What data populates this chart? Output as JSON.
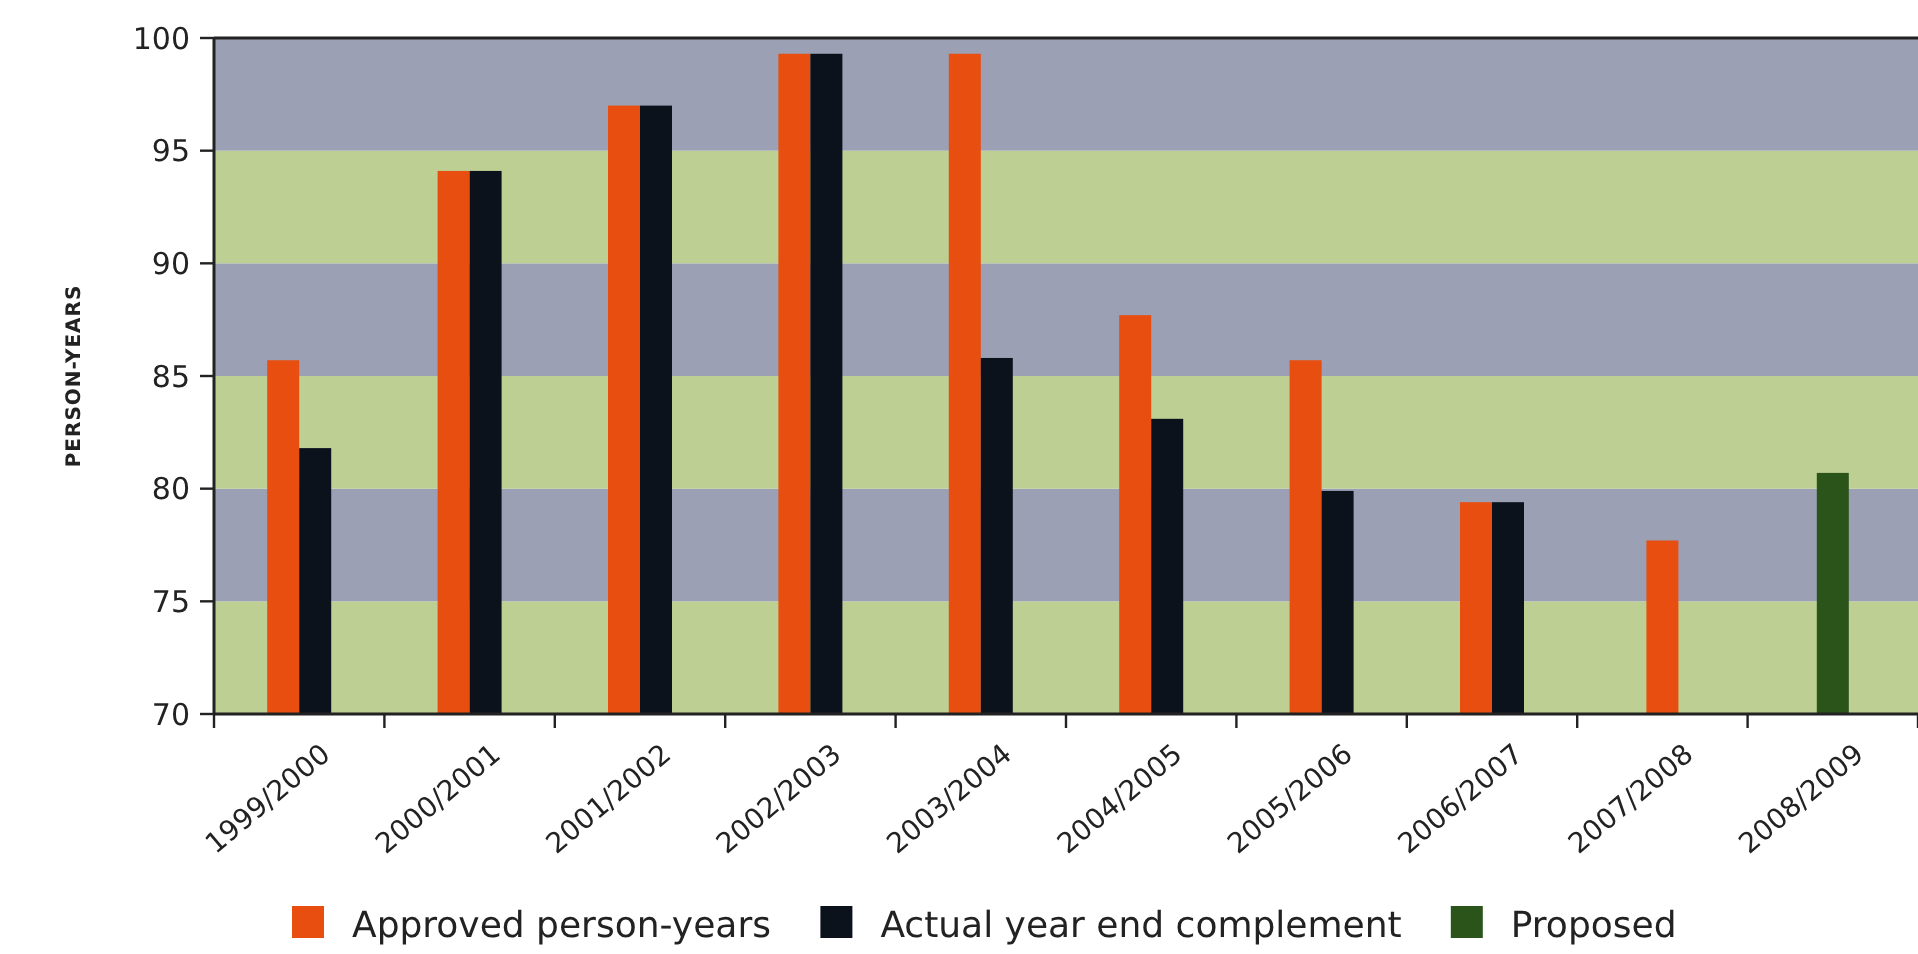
{
  "chart_data": {
    "type": "bar",
    "ylabel": "PERSON-YEARS",
    "categories": [
      "1999/2000",
      "2000/2001",
      "2001/2002",
      "2002/2003",
      "2003/2004",
      "2004/2005",
      "2005/2006",
      "2006/2007",
      "2007/2008",
      "2008/2009"
    ],
    "series": [
      {
        "name": "Approved person-years",
        "color": "#e84e0f",
        "values": [
          85.7,
          94.1,
          97.0,
          99.3,
          99.3,
          87.7,
          85.7,
          79.4,
          77.7,
          null
        ]
      },
      {
        "name": "Actual year end complement",
        "color": "#0c121c",
        "values": [
          81.8,
          94.1,
          97.0,
          99.3,
          85.8,
          83.1,
          79.9,
          79.4,
          null,
          null
        ]
      },
      {
        "name": "Proposed",
        "color": "#2b541b",
        "values": [
          null,
          null,
          null,
          null,
          null,
          null,
          null,
          null,
          null,
          80.7
        ]
      }
    ],
    "ylim": [
      70,
      100
    ],
    "yticks": [
      70,
      75,
      80,
      85,
      90,
      95,
      100
    ],
    "bands": [
      {
        "axis": "y",
        "from": 70,
        "to": 75,
        "color": "#bdcf92"
      },
      {
        "axis": "y",
        "from": 75,
        "to": 80,
        "color": "#9ca0b5"
      },
      {
        "axis": "y",
        "from": 80,
        "to": 85,
        "color": "#bdcf92"
      },
      {
        "axis": "y",
        "from": 85,
        "to": 90,
        "color": "#9ca0b5"
      },
      {
        "axis": "y",
        "from": 90,
        "to": 95,
        "color": "#bdcf92"
      },
      {
        "axis": "y",
        "from": 95,
        "to": 100,
        "color": "#9ca0b5"
      }
    ],
    "legend": "bottom"
  }
}
